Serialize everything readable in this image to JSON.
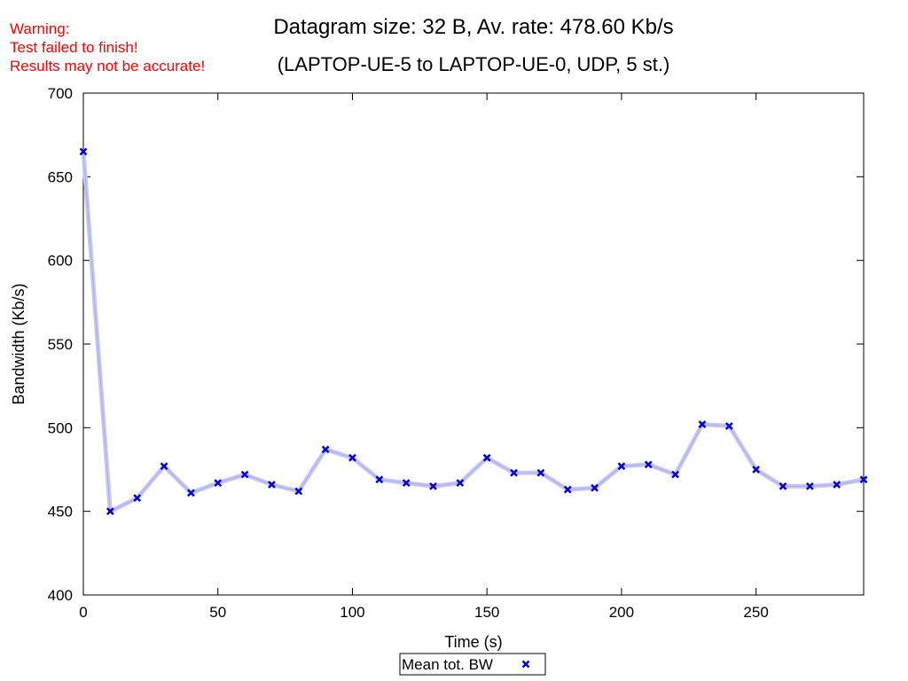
{
  "warning": {
    "lines": [
      "Warning:",
      "Test failed to finish!",
      "Results may not be accurate!"
    ],
    "color": "#ff0000"
  },
  "chart_data": {
    "type": "line",
    "title": "Datagram size: 32 B, Av. rate: 478.60 Kb/s",
    "subtitle": "(LAPTOP-UE-5 to LAPTOP-UE-0, UDP, 5 st.)",
    "xlabel": "Time (s)",
    "ylabel": "Bandwidth (Kb/s)",
    "xlim": [
      0,
      290
    ],
    "ylim": [
      400,
      700
    ],
    "xticks": [
      0,
      50,
      100,
      150,
      200,
      250
    ],
    "yticks": [
      400,
      450,
      500,
      550,
      600,
      650,
      700
    ],
    "grid": false,
    "legend_position": "bottom-center",
    "series": [
      {
        "name": "Mean tot. BW",
        "color": "#0000e0",
        "band_color": "#c8c8f5",
        "marker": "x",
        "x": [
          0,
          10,
          20,
          30,
          40,
          50,
          60,
          70,
          80,
          90,
          100,
          110,
          120,
          130,
          140,
          150,
          160,
          170,
          180,
          190,
          200,
          210,
          220,
          230,
          240,
          250,
          260,
          270,
          280,
          290
        ],
        "y": [
          665,
          450,
          458,
          477,
          461,
          467,
          472,
          466,
          462,
          487,
          482,
          469,
          467,
          465,
          467,
          482,
          473,
          473,
          463,
          464,
          477,
          478,
          472,
          502,
          501,
          475,
          465,
          465,
          466,
          469
        ]
      }
    ]
  }
}
